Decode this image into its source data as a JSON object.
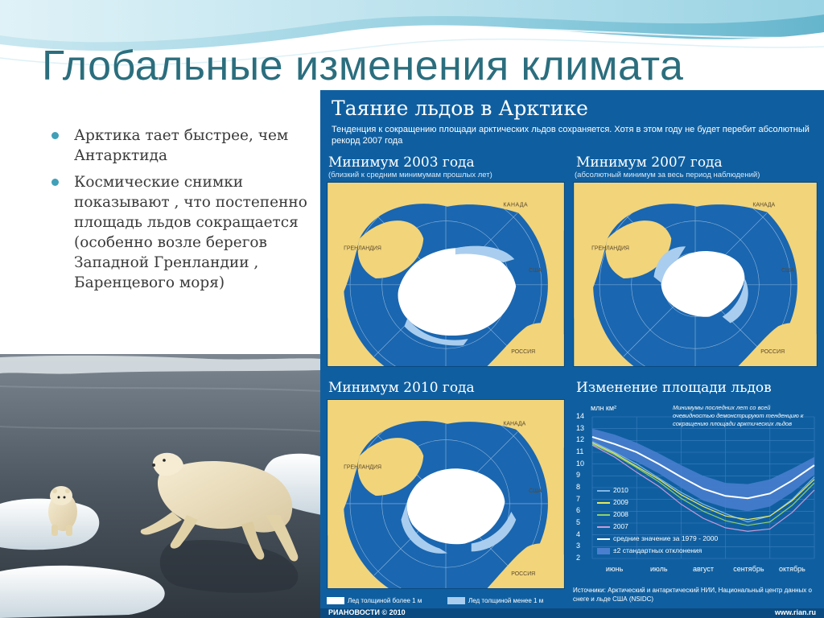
{
  "slide": {
    "title": "Глобальные изменения климата",
    "bullets": [
      "Арктика тает быстрее, чем Антарктида",
      "Космические снимки показывают , что постепенно площадь льдов сокращается (особенно возле берегов Западной Гренландии , Баренцевого моря)"
    ]
  },
  "infographic": {
    "title": "Таяние льдов в Арктике",
    "subtitle": "Тенденция к сокращению площади арктических льдов сохраняется. Хотя в этом году не будет перебит абсолютный рекорд 2007 года",
    "panels": [
      {
        "title": "Минимум 2003 года",
        "note": "(близкий к средним минимумам прошлых лет)"
      },
      {
        "title": "Минимум 2007 года",
        "note": "(абсолютный минимум за весь период наблюдений)"
      },
      {
        "title": "Минимум 2010 года",
        "note": ""
      }
    ],
    "map_labels": {
      "canada": "КАНАДА",
      "greenland": "ГРЕНЛАНДИЯ (ДАНИЯ)",
      "usa": "США",
      "russia": "РОССИЯ"
    },
    "legend_thick": "Лед толщиной более 1 м",
    "legend_thin": "Лед толщиной менее 1 м",
    "sources": "Источники: Арктический и антарктический НИИ, Национальный центр данных о снеге и льде США (NSIDC)",
    "logo": "РИАНОВОСТИ © 2010",
    "url": "www.rian.ru",
    "colors": {
      "background": "#0f5fa0",
      "land": "#f2d47a",
      "thick_ice": "#ffffff",
      "thin_ice": "#a9cdee",
      "sea": "#1a66b0"
    }
  },
  "chart_data": {
    "type": "line",
    "title": "Изменение площади льдов",
    "ylabel": "млн км²",
    "ylim": [
      2,
      14
    ],
    "yticks": [
      2,
      3,
      4,
      5,
      6,
      7,
      8,
      9,
      10,
      11,
      12,
      13,
      14
    ],
    "categories": [
      "июнь",
      "июль",
      "август",
      "сентябрь",
      "октябрь"
    ],
    "annotation": "Минимумы последних лет со всей очевидностью демонстрируют тенденцию к сокращению площади арктических льдов",
    "x": [
      0,
      0.5,
      1,
      1.5,
      2,
      2.5,
      3,
      3.5,
      4,
      4.5,
      5
    ],
    "series": [
      {
        "name": "2010",
        "color": "#7fb8e8",
        "values": [
          11.9,
          11.0,
          10.0,
          8.8,
          7.6,
          6.6,
          5.8,
          5.1,
          5.6,
          7.0,
          8.9
        ]
      },
      {
        "name": "2009",
        "color": "#e8e85a",
        "values": [
          11.8,
          10.9,
          9.8,
          8.7,
          7.4,
          6.4,
          5.6,
          5.3,
          5.6,
          6.9,
          8.7
        ]
      },
      {
        "name": "2008",
        "color": "#8fd06a",
        "values": [
          11.7,
          10.8,
          9.7,
          8.5,
          7.1,
          6.0,
          5.2,
          4.8,
          5.1,
          6.5,
          8.4
        ]
      },
      {
        "name": "2007",
        "color": "#c99ad8",
        "values": [
          11.6,
          10.6,
          9.3,
          8.1,
          6.6,
          5.4,
          4.6,
          4.3,
          4.5,
          5.9,
          7.8
        ]
      },
      {
        "name": "средние значение за 1979 - 2000",
        "color": "#ffffff",
        "values": [
          12.3,
          11.7,
          11.0,
          10.0,
          8.9,
          7.9,
          7.3,
          7.1,
          7.5,
          8.6,
          9.9
        ]
      }
    ],
    "band": {
      "name": "±2 стандартных отклонения",
      "color": "#4a7fd0",
      "upper": [
        13.0,
        12.5,
        11.8,
        10.9,
        9.9,
        9.0,
        8.4,
        8.3,
        8.7,
        9.6,
        10.6
      ],
      "lower": [
        11.6,
        10.9,
        10.2,
        9.2,
        8.0,
        6.9,
        6.3,
        6.0,
        6.4,
        7.6,
        9.1
      ]
    }
  }
}
